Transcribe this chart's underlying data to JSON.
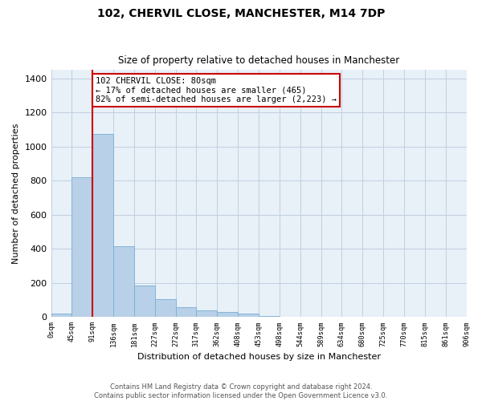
{
  "title1": "102, CHERVIL CLOSE, MANCHESTER, M14 7DP",
  "title2": "Size of property relative to detached houses in Manchester",
  "xlabel": "Distribution of detached houses by size in Manchester",
  "ylabel": "Number of detached properties",
  "bin_labels": [
    "0sqm",
    "45sqm",
    "91sqm",
    "136sqm",
    "181sqm",
    "227sqm",
    "272sqm",
    "317sqm",
    "362sqm",
    "408sqm",
    "453sqm",
    "498sqm",
    "544sqm",
    "589sqm",
    "634sqm",
    "680sqm",
    "725sqm",
    "770sqm",
    "815sqm",
    "861sqm",
    "906sqm"
  ],
  "bar_heights": [
    22,
    820,
    1075,
    415,
    185,
    105,
    60,
    37,
    32,
    18,
    5,
    1,
    0,
    0,
    0,
    0,
    0,
    0,
    0,
    0
  ],
  "bar_color": "#b8d0e8",
  "bar_edge_color": "#7aafd4",
  "annotation_text": "102 CHERVIL CLOSE: 80sqm\n← 17% of detached houses are smaller (465)\n82% of semi-detached houses are larger (2,223) →",
  "annotation_box_color": "#ffffff",
  "annotation_box_edge": "#cc0000",
  "red_line_color": "#cc0000",
  "ylim": [
    0,
    1450
  ],
  "yticks": [
    0,
    200,
    400,
    600,
    800,
    1000,
    1200,
    1400
  ],
  "footer1": "Contains HM Land Registry data © Crown copyright and database right 2024.",
  "footer2": "Contains public sector information licensed under the Open Government Licence v3.0.",
  "bg_color": "#ffffff",
  "plot_bg_color": "#e8f0f8",
  "grid_color": "#c0cfe0",
  "red_line_xbin": 2
}
